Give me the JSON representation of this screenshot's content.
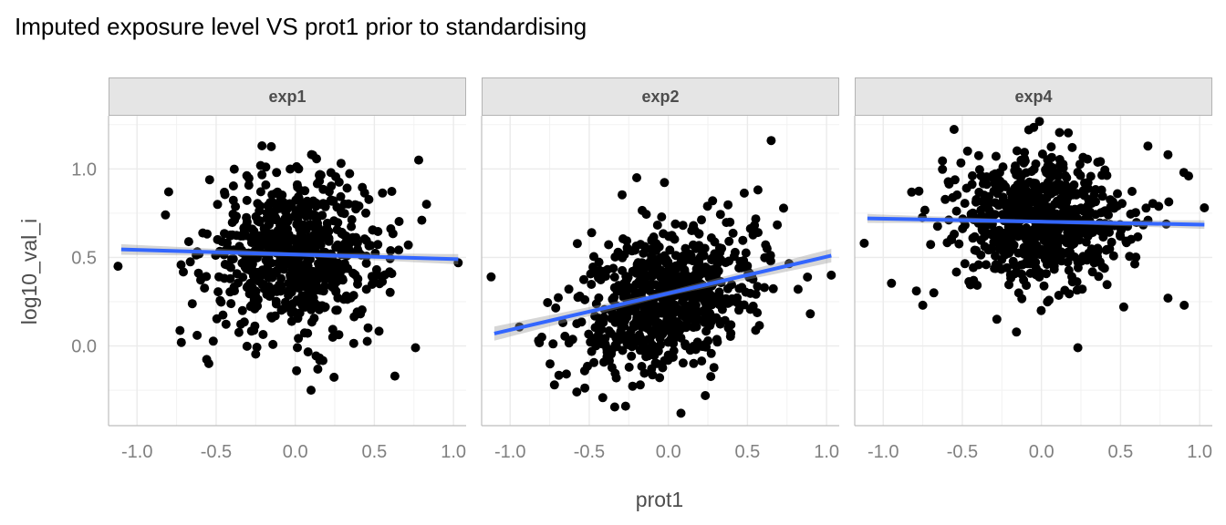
{
  "chart_data": {
    "type": "scatter",
    "title": "Imputed exposure level VS prot1 prior to standardising",
    "xlabel": "prot1",
    "ylabel": "log10_val_i",
    "xlim": [
      -1.18,
      1.08
    ],
    "ylim": [
      -0.45,
      1.3
    ],
    "x_ticks": [
      -1.0,
      -0.5,
      0.0,
      0.5,
      1.0
    ],
    "x_tick_labels": [
      "-1.0",
      "-0.5",
      "0.0",
      "0.5",
      "1.0"
    ],
    "y_ticks": [
      0.0,
      0.5,
      1.0
    ],
    "y_tick_labels": [
      "0.0",
      "0.5",
      "1.0"
    ],
    "grid": true,
    "theme": "minimal",
    "point_color": "#000000",
    "fit_line_color": "#3366ff",
    "ci_band_color": "#999999",
    "panels": [
      {
        "name": "exp1",
        "fit": {
          "x": [
            -1.1,
            1.03
          ],
          "y": [
            0.545,
            0.49
          ]
        },
        "fit_se": 0.03,
        "cloud": {
          "n": 700,
          "x_mean": 0.0,
          "x_sd": 0.28,
          "y_mean": 0.52,
          "y_sd": 0.22,
          "slope": -0.02
        },
        "outliers": [
          [
            -1.12,
            0.45
          ],
          [
            -0.8,
            0.87
          ],
          [
            1.03,
            0.47
          ],
          [
            0.78,
            1.05
          ],
          [
            -0.21,
            1.13
          ],
          [
            0.8,
            0.71
          ],
          [
            0.83,
            0.8
          ],
          [
            -0.72,
            0.02
          ],
          [
            0.1,
            -0.25
          ],
          [
            0.63,
            -0.17
          ],
          [
            0.76,
            -0.01
          ],
          [
            -0.62,
            0.06
          ]
        ]
      },
      {
        "name": "exp2",
        "fit": {
          "x": [
            -1.1,
            1.03
          ],
          "y": [
            0.07,
            0.51
          ]
        },
        "fit_se": 0.04,
        "cloud": {
          "n": 700,
          "x_mean": 0.0,
          "x_sd": 0.28,
          "y_mean": 0.28,
          "y_sd": 0.2,
          "slope": 0.2
        },
        "outliers": [
          [
            -1.12,
            0.39
          ],
          [
            -0.2,
            0.95
          ],
          [
            0.65,
            1.16
          ],
          [
            1.03,
            0.4
          ],
          [
            -0.72,
            -0.22
          ],
          [
            0.08,
            -0.38
          ],
          [
            -0.27,
            -0.34
          ],
          [
            0.82,
            0.32
          ],
          [
            -0.8,
            0.05
          ],
          [
            0.28,
            0.82
          ],
          [
            -0.82,
            0.03
          ]
        ]
      },
      {
        "name": "exp4",
        "fit": {
          "x": [
            -1.1,
            1.03
          ],
          "y": [
            0.72,
            0.685
          ]
        },
        "fit_se": 0.025,
        "cloud": {
          "n": 700,
          "x_mean": 0.0,
          "x_sd": 0.28,
          "y_mean": 0.7,
          "y_sd": 0.19,
          "slope": -0.02
        },
        "outliers": [
          [
            -1.12,
            0.58
          ],
          [
            1.03,
            0.78
          ],
          [
            -0.08,
            1.22
          ],
          [
            0.8,
            1.08
          ],
          [
            0.9,
            0.98
          ],
          [
            0.93,
            0.96
          ],
          [
            0.23,
            -0.01
          ],
          [
            0.52,
            0.22
          ],
          [
            -0.68,
            0.3
          ],
          [
            -0.75,
            0.23
          ],
          [
            0.8,
            0.27
          ]
        ]
      }
    ]
  }
}
